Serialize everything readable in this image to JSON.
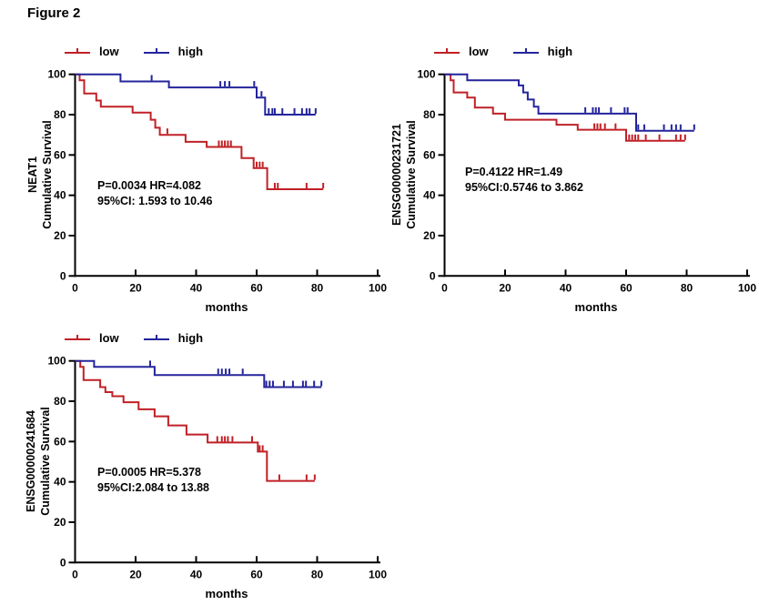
{
  "figure_title": "Figure 2",
  "colors": {
    "low": "#c02026",
    "high": "#24249c",
    "axis": "#000000"
  },
  "chart_data": [
    {
      "type": "km_step",
      "position": "top-left",
      "gene": "NEAT1",
      "ylabel": [
        "NEAT1",
        "Cumulative Survival"
      ],
      "xlabel": "months",
      "xlim": [
        0,
        100
      ],
      "ylim": [
        0,
        100
      ],
      "xticks": [
        0,
        20,
        40,
        60,
        80,
        100
      ],
      "yticks": [
        0,
        20,
        40,
        60,
        80,
        100
      ],
      "annotation": [
        "P=0.0034 HR=4.082",
        "95%CI: 1.593 to 10.46"
      ],
      "series": [
        {
          "name": "low",
          "color": "#c02026",
          "points": [
            [
              0,
              100
            ],
            [
              1.5,
              97
            ],
            [
              3,
              90.5
            ],
            [
              7,
              87
            ],
            [
              8.5,
              84
            ],
            [
              19,
              81
            ],
            [
              25,
              77.5
            ],
            [
              26.5,
              73.5
            ],
            [
              28,
              70
            ],
            [
              36.5,
              66.5
            ],
            [
              43.5,
              64
            ],
            [
              55,
              58.5
            ],
            [
              59,
              53.5
            ],
            [
              63.5,
              43
            ],
            [
              82,
              43
            ]
          ],
          "censors": [
            30.5,
            47.5,
            48.5,
            49.5,
            50.5,
            51.5,
            60,
            61,
            62,
            66,
            67,
            76.5,
            82
          ]
        },
        {
          "name": "high",
          "color": "#24249c",
          "points": [
            [
              0,
              100
            ],
            [
              15,
              96.5
            ],
            [
              31,
              93.5
            ],
            [
              60,
              88.5
            ],
            [
              62.8,
              80
            ],
            [
              79.5,
              80
            ]
          ],
          "censors": [
            25.3,
            48,
            49.5,
            51,
            59.2,
            61.6,
            64,
            65.2,
            66,
            68.5,
            72.5,
            75,
            76.5,
            77.5,
            79.5
          ]
        }
      ]
    },
    {
      "type": "km_step",
      "position": "top-right",
      "gene": "ENSG00000231721",
      "ylabel": [
        "ENSG00000231721",
        "Cumulative Survival"
      ],
      "xlabel": "months",
      "xlim": [
        0,
        100
      ],
      "ylim": [
        0,
        100
      ],
      "xticks": [
        0,
        20,
        40,
        60,
        80,
        100
      ],
      "yticks": [
        0,
        20,
        40,
        60,
        80,
        100
      ],
      "annotation": [
        "P=0.4122 HR=1.49",
        "95%CI:0.5746 to 3.862"
      ],
      "series": [
        {
          "name": "low",
          "color": "#c02026",
          "points": [
            [
              0,
              100
            ],
            [
              2,
              97
            ],
            [
              3,
              91
            ],
            [
              7.5,
              88.5
            ],
            [
              10,
              83.5
            ],
            [
              16,
              80.5
            ],
            [
              20,
              77.5
            ],
            [
              37,
              75
            ],
            [
              44,
              72.5
            ],
            [
              60,
              67
            ],
            [
              79.5,
              67
            ]
          ],
          "censors": [
            49.5,
            50.5,
            51.5,
            53,
            56.5,
            61,
            62,
            63,
            64,
            66.5,
            71,
            76.5,
            78,
            79.5
          ]
        },
        {
          "name": "high",
          "color": "#24249c",
          "points": [
            [
              0,
              100
            ],
            [
              7.5,
              97
            ],
            [
              24.5,
              94.5
            ],
            [
              26,
              91
            ],
            [
              27.5,
              87.5
            ],
            [
              29.5,
              84
            ],
            [
              31,
              80.5
            ],
            [
              63.3,
              72
            ],
            [
              82.5,
              72
            ]
          ],
          "censors": [
            46.5,
            49,
            50,
            51,
            55,
            59.5,
            60.5,
            64,
            66,
            72.5,
            75,
            76.5,
            78,
            82.5
          ]
        }
      ]
    },
    {
      "type": "km_step",
      "position": "bottom-left",
      "gene": "ENSG00000241684",
      "ylabel": [
        "ENSG00000241684",
        "Cumulative Survival"
      ],
      "xlabel": "months",
      "xlim": [
        0,
        100
      ],
      "ylim": [
        0,
        100
      ],
      "xticks": [
        0,
        20,
        40,
        60,
        80,
        100
      ],
      "yticks": [
        0,
        20,
        40,
        60,
        80,
        100
      ],
      "annotation": [
        "P=0.0005 HR=5.378",
        "95%CI:2.084 to 13.88"
      ],
      "series": [
        {
          "name": "low",
          "color": "#c02026",
          "points": [
            [
              0,
              100
            ],
            [
              1.7,
              97
            ],
            [
              2.8,
              90.5
            ],
            [
              8.3,
              87
            ],
            [
              10,
              84.5
            ],
            [
              12.3,
              82.5
            ],
            [
              16,
              79.5
            ],
            [
              21,
              76
            ],
            [
              26.3,
              72.5
            ],
            [
              30.8,
              68
            ],
            [
              36.8,
              63.5
            ],
            [
              43.8,
              59.5
            ],
            [
              60.4,
              55
            ],
            [
              63.4,
              40.5
            ],
            [
              79.2,
              40.5
            ]
          ],
          "censors": [
            47,
            48.5,
            49.5,
            50.5,
            52,
            58.5,
            61,
            62,
            67.5,
            76.5,
            79.2
          ]
        },
        {
          "name": "high",
          "color": "#24249c",
          "points": [
            [
              0,
              100
            ],
            [
              6.3,
              97
            ],
            [
              26.3,
              93
            ],
            [
              62.5,
              87
            ],
            [
              81.4,
              87
            ]
          ],
          "censors": [
            24.8,
            47.3,
            48.5,
            49.8,
            51,
            55.4,
            63.2,
            64.3,
            65.4,
            69,
            72,
            75.3,
            76.3,
            79,
            81.4
          ]
        }
      ]
    }
  ]
}
